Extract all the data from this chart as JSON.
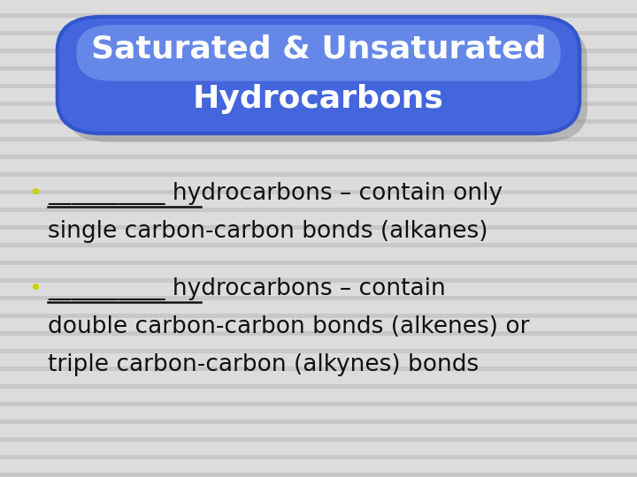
{
  "title_line1": "Saturated & Unsaturated",
  "title_line2": "Hydrocarbons",
  "title_text_color": "#ffffff",
  "bullet_color": "#c8d400",
  "text_color": "#111111",
  "bg_stripe_light": "#dcdcdc",
  "bg_stripe_dark": "#c8c8c8",
  "shadow_color": "#888888",
  "box_outer_color": "#3355cc",
  "box_mid_color": "#4466dd",
  "box_highlight_color": "#7799ee",
  "font_size_title": 26,
  "font_size_body": 19,
  "figsize": [
    7.2,
    5.4
  ],
  "dpi": 100,
  "bullet1_blank": "__________",
  "bullet1_rest1": " hydrocarbons – contain only",
  "bullet1_line2": "single carbon-carbon bonds (alkanes)",
  "bullet2_blank": "__________",
  "bullet2_rest1": " hydrocarbons – contain",
  "bullet2_line2": "double carbon-carbon bonds (alkenes) or",
  "bullet2_line3": "triple carbon-carbon (alkynes) bonds"
}
